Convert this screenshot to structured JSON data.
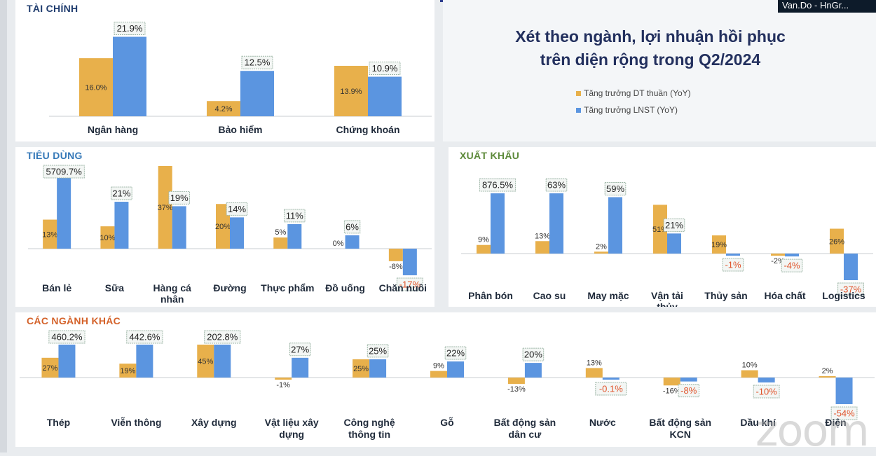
{
  "overlay": {
    "presenter_tag": "Van.Do - HnGr...",
    "watermark": "zoom"
  },
  "header": {
    "title_line1": "Xét theo ngành, lợi nhuận hồi phục",
    "title_line2": "trên diện rộng trong Q2/2024",
    "legend": [
      {
        "label": "Tăng trưởng DT thuần (YoY)",
        "color": "#e8b04b"
      },
      {
        "label": "Tăng trưởng LNST (YoY)",
        "color": "#5b95e0"
      }
    ]
  },
  "colors": {
    "revenue": "#e8b04b",
    "profit": "#5b95e0",
    "title": "#23305e",
    "fin_title": "#1f3c6e",
    "con_title": "#3478b8",
    "exp_title": "#5d8a3a",
    "oth_title": "#d4622a",
    "neg_label": "#e0542c"
  },
  "chart_data": [
    {
      "id": "fin",
      "type": "bar",
      "title": "TÀI CHÍNH",
      "categories": [
        "Ngân hàng",
        "Bảo hiểm",
        "Chứng khoán"
      ],
      "series": [
        {
          "name": "Tăng trưởng DT thuần (YoY)",
          "values": [
            16.0,
            4.2,
            13.9
          ],
          "labels": [
            "16.0%",
            "4.2%",
            "13.9%"
          ]
        },
        {
          "name": "Tăng trưởng LNST (YoY)",
          "values": [
            21.9,
            12.5,
            10.9
          ],
          "labels": [
            "21.9%",
            "12.5%",
            "10.9%"
          ]
        }
      ]
    },
    {
      "id": "con",
      "type": "bar",
      "title": "TIÊU DÙNG",
      "categories": [
        "Bán lẻ",
        "Sữa",
        "Hàng cá nhân",
        "Đường",
        "Thực phẩm",
        "Đồ uống",
        "Chăn nuôi"
      ],
      "series": [
        {
          "name": "Tăng trưởng DT thuần (YoY)",
          "values": [
            13,
            10,
            37,
            20,
            5,
            0,
            -8
          ],
          "labels": [
            "13%",
            "10%",
            "37%",
            "20%",
            "5%",
            "0%",
            "-8%"
          ]
        },
        {
          "name": "Tăng trưởng LNST (YoY)",
          "values": [
            5709.7,
            21,
            19,
            14,
            11,
            6,
            -17
          ],
          "labels": [
            "5709.7%",
            "21%",
            "19%",
            "14%",
            "11%",
            "6%",
            "-17%"
          ]
        }
      ]
    },
    {
      "id": "exp",
      "type": "bar",
      "title": "XUẤT KHẨU",
      "categories": [
        "Phân bón",
        "Cao su",
        "May mặc",
        "Vận tải thủy",
        "Thủy sản",
        "Hóa chất",
        "Logistics"
      ],
      "series": [
        {
          "name": "Tăng trưởng DT thuần (YoY)",
          "values": [
            9,
            13,
            2,
            51,
            19,
            -2,
            26
          ],
          "labels": [
            "9%",
            "13%",
            "2%",
            "51%",
            "19%",
            "-2%",
            "26%"
          ]
        },
        {
          "name": "Tăng trưởng LNST (YoY)",
          "values": [
            876.5,
            63,
            59,
            21,
            -1,
            -4,
            -37
          ],
          "labels": [
            "876.5%",
            "63%",
            "59%",
            "21%",
            "-1%",
            "-4%",
            "-37%"
          ]
        }
      ]
    },
    {
      "id": "oth",
      "type": "bar",
      "title": "CÁC NGÀNH KHÁC",
      "categories": [
        "Thép",
        "Viễn thông",
        "Xây dựng",
        "Vật liệu xây dựng",
        "Công nghệ thông tin",
        "Gỗ",
        "Bất động sản dân cư",
        "Nước",
        "Bất động sản KCN",
        "Dầu khí",
        "Điện"
      ],
      "series": [
        {
          "name": "Tăng trưởng DT thuần (YoY)",
          "values": [
            27,
            19,
            45,
            -1,
            25,
            9,
            -13,
            13,
            -16,
            10,
            2
          ],
          "labels": [
            "27%",
            "19%",
            "45%",
            "-1%",
            "25%",
            "9%",
            "-13%",
            "13%",
            "-16%",
            "10%",
            "2%"
          ]
        },
        {
          "name": "Tăng trưởng LNST (YoY)",
          "values": [
            460.2,
            442.6,
            202.8,
            27,
            25,
            22,
            20,
            -0.1,
            -8,
            -10,
            -54
          ],
          "labels": [
            "460.2%",
            "442.6%",
            "202.8%",
            "27%",
            "25%",
            "22%",
            "20%",
            "-0.1%",
            "-8%",
            "-10%",
            "-54%"
          ]
        }
      ]
    }
  ]
}
